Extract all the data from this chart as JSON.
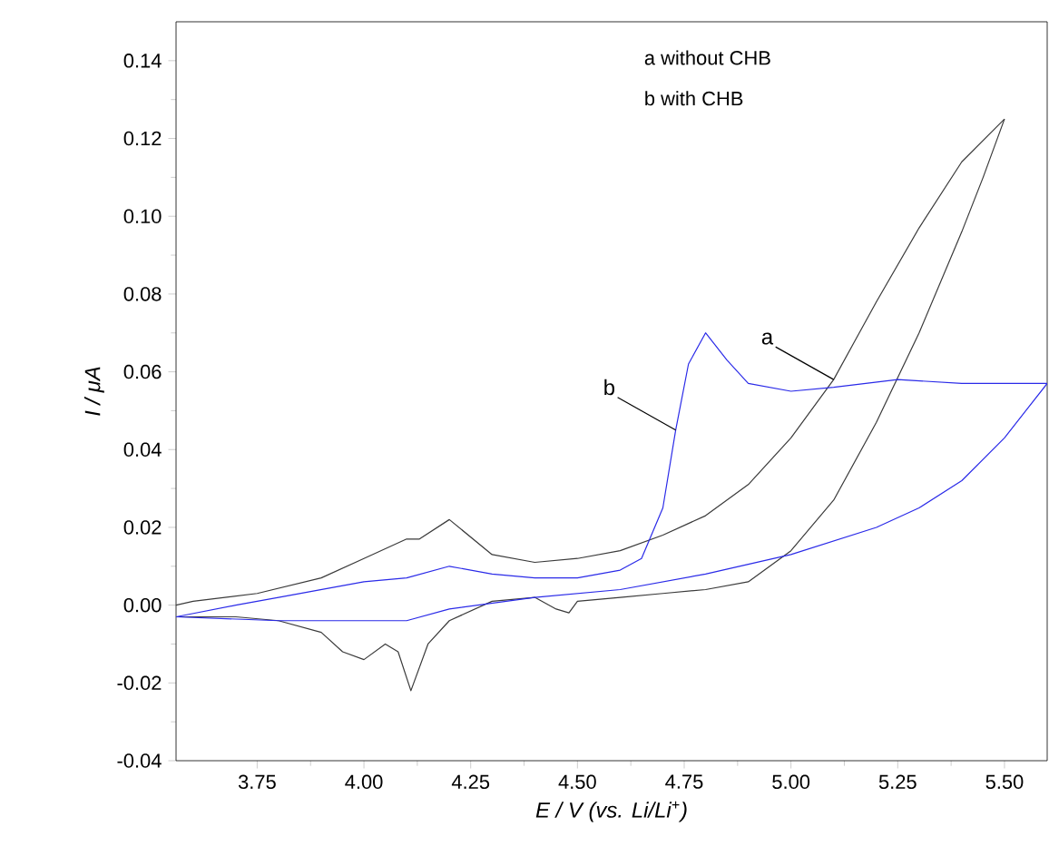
{
  "chart_data": {
    "type": "line",
    "xlabel": "E / V (vs. Li/Li$^{+}$)",
    "ylabel": "I / μA",
    "xlim": [
      3.56,
      5.6
    ],
    "ylim": [
      -0.04,
      0.15
    ],
    "xticks": [
      3.75,
      {
        "value": 4,
        "label": "4.00"
      },
      4.25,
      {
        "value": 4.5,
        "label": "4.50"
      },
      4.75,
      {
        "value": 5,
        "label": "5.00"
      },
      5.25,
      {
        "value": 5.5,
        "label": "5.50"
      }
    ],
    "yticks": [
      -0.04,
      -0.02,
      {
        "value": 0,
        "label": "0.00"
      },
      0.02,
      0.04,
      0.06,
      0.08,
      {
        "value": 0.1,
        "label": "0.10"
      },
      0.12,
      0.14
    ],
    "grid": false,
    "marker": "none",
    "line_style": "solid",
    "series": [
      {
        "color": "#3a3a3a",
        "x": [
          3.56,
          3.6,
          3.75,
          3.9,
          4.0,
          4.1,
          4.13,
          4.2,
          4.3,
          4.4,
          4.5,
          4.6,
          4.7,
          4.8,
          4.9,
          5.0,
          5.1,
          5.15,
          5.2,
          5.3,
          5.4,
          5.5
        ],
        "values": [
          0.0,
          0.001,
          0.003,
          0.007,
          0.012,
          0.017,
          0.017,
          0.022,
          0.013,
          0.011,
          0.012,
          0.014,
          0.018,
          0.023,
          0.031,
          0.043,
          0.058,
          0.068,
          0.078,
          0.097,
          0.114,
          0.125
        ]
      },
      {
        "color": "#3a3a3a",
        "x": [
          5.5,
          5.45,
          5.4,
          5.3,
          5.2,
          5.1,
          5.0,
          4.9,
          4.8,
          4.7,
          4.6,
          4.5,
          4.48,
          4.45,
          4.4,
          4.3,
          4.2,
          4.15,
          4.11,
          4.08,
          4.05,
          4.0,
          3.95,
          3.9,
          3.8,
          3.7,
          3.56
        ],
        "values": [
          0.125,
          0.11,
          0.096,
          0.07,
          0.047,
          0.027,
          0.014,
          0.006,
          0.004,
          0.003,
          0.002,
          0.001,
          -0.002,
          -0.001,
          0.002,
          0.001,
          -0.004,
          -0.01,
          -0.022,
          -0.012,
          -0.01,
          -0.014,
          -0.012,
          -0.007,
          -0.004,
          -0.003,
          -0.003
        ]
      },
      {
        "color": "#2a2ae8",
        "x": [
          3.56,
          3.7,
          3.8,
          3.9,
          4.0,
          4.1,
          4.2,
          4.3,
          4.4,
          4.5,
          4.6,
          4.65,
          4.7,
          4.73,
          4.76,
          4.8,
          4.85,
          4.9,
          5.0,
          5.1,
          5.25,
          5.4,
          5.6
        ],
        "values": [
          -0.003,
          0.0,
          0.002,
          0.004,
          0.006,
          0.007,
          0.01,
          0.008,
          0.007,
          0.007,
          0.009,
          0.012,
          0.025,
          0.045,
          0.062,
          0.07,
          0.063,
          0.057,
          0.055,
          0.056,
          0.058,
          0.057,
          0.057
        ]
      },
      {
        "color": "#2a2ae8",
        "x": [
          5.6,
          5.55,
          5.5,
          5.4,
          5.3,
          5.2,
          5.0,
          4.8,
          4.6,
          4.4,
          4.2,
          4.1,
          4.0,
          3.8,
          3.56
        ],
        "values": [
          0.057,
          0.05,
          0.043,
          0.032,
          0.025,
          0.02,
          0.013,
          0.008,
          0.004,
          0.002,
          -0.001,
          -0.004,
          -0.004,
          -0.004,
          -0.003
        ]
      }
    ],
    "annotations": [
      "a without CHB",
      "b with CHB",
      {
        "text": "a",
        "x": 5.1,
        "y": 0.058
      },
      {
        "text": "b",
        "x": 4.73,
        "y": 0.045
      }
    ]
  }
}
